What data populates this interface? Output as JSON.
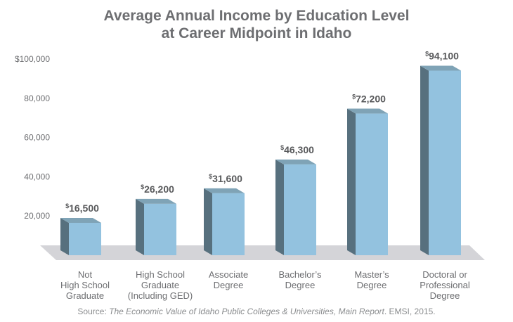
{
  "chart_data": {
    "type": "bar",
    "title_lines": [
      "Average Annual Income by Education Level",
      "at Career Midpoint in Idaho"
    ],
    "categories": [
      [
        "Not",
        "High School",
        "Graduate"
      ],
      [
        "High School",
        "Graduate",
        "(Including GED)"
      ],
      [
        "Associate",
        "Degree"
      ],
      [
        "Bachelor’s",
        "Degree"
      ],
      [
        "Master’s",
        "Degree"
      ],
      [
        "Doctoral or",
        "Professional",
        "Degree"
      ]
    ],
    "values": [
      16500,
      26200,
      31600,
      46300,
      72200,
      94100
    ],
    "value_labels": [
      "16,500",
      "26,200",
      "31,600",
      "46,300",
      "72,200",
      "94,100"
    ],
    "value_prefix": "$",
    "yticks": [
      20000,
      40000,
      60000,
      80000,
      100000
    ],
    "ytick_labels": [
      "20,000",
      "40,000",
      "60,000",
      "80,000",
      "$100,000"
    ],
    "ylim": [
      0,
      100000
    ],
    "grid": false,
    "colors": {
      "bar_front": "#93c2df",
      "bar_side": "#57707e",
      "bar_top": "#7fa3b6",
      "floor": "#d4d4d8",
      "text": "#6d6e71",
      "label": "#58595b"
    }
  },
  "source": {
    "prefix": "Source: ",
    "title": "The Economic Value of Idaho Public Colleges & Universities, Main Report",
    "suffix": ". EMSI, 2015."
  }
}
